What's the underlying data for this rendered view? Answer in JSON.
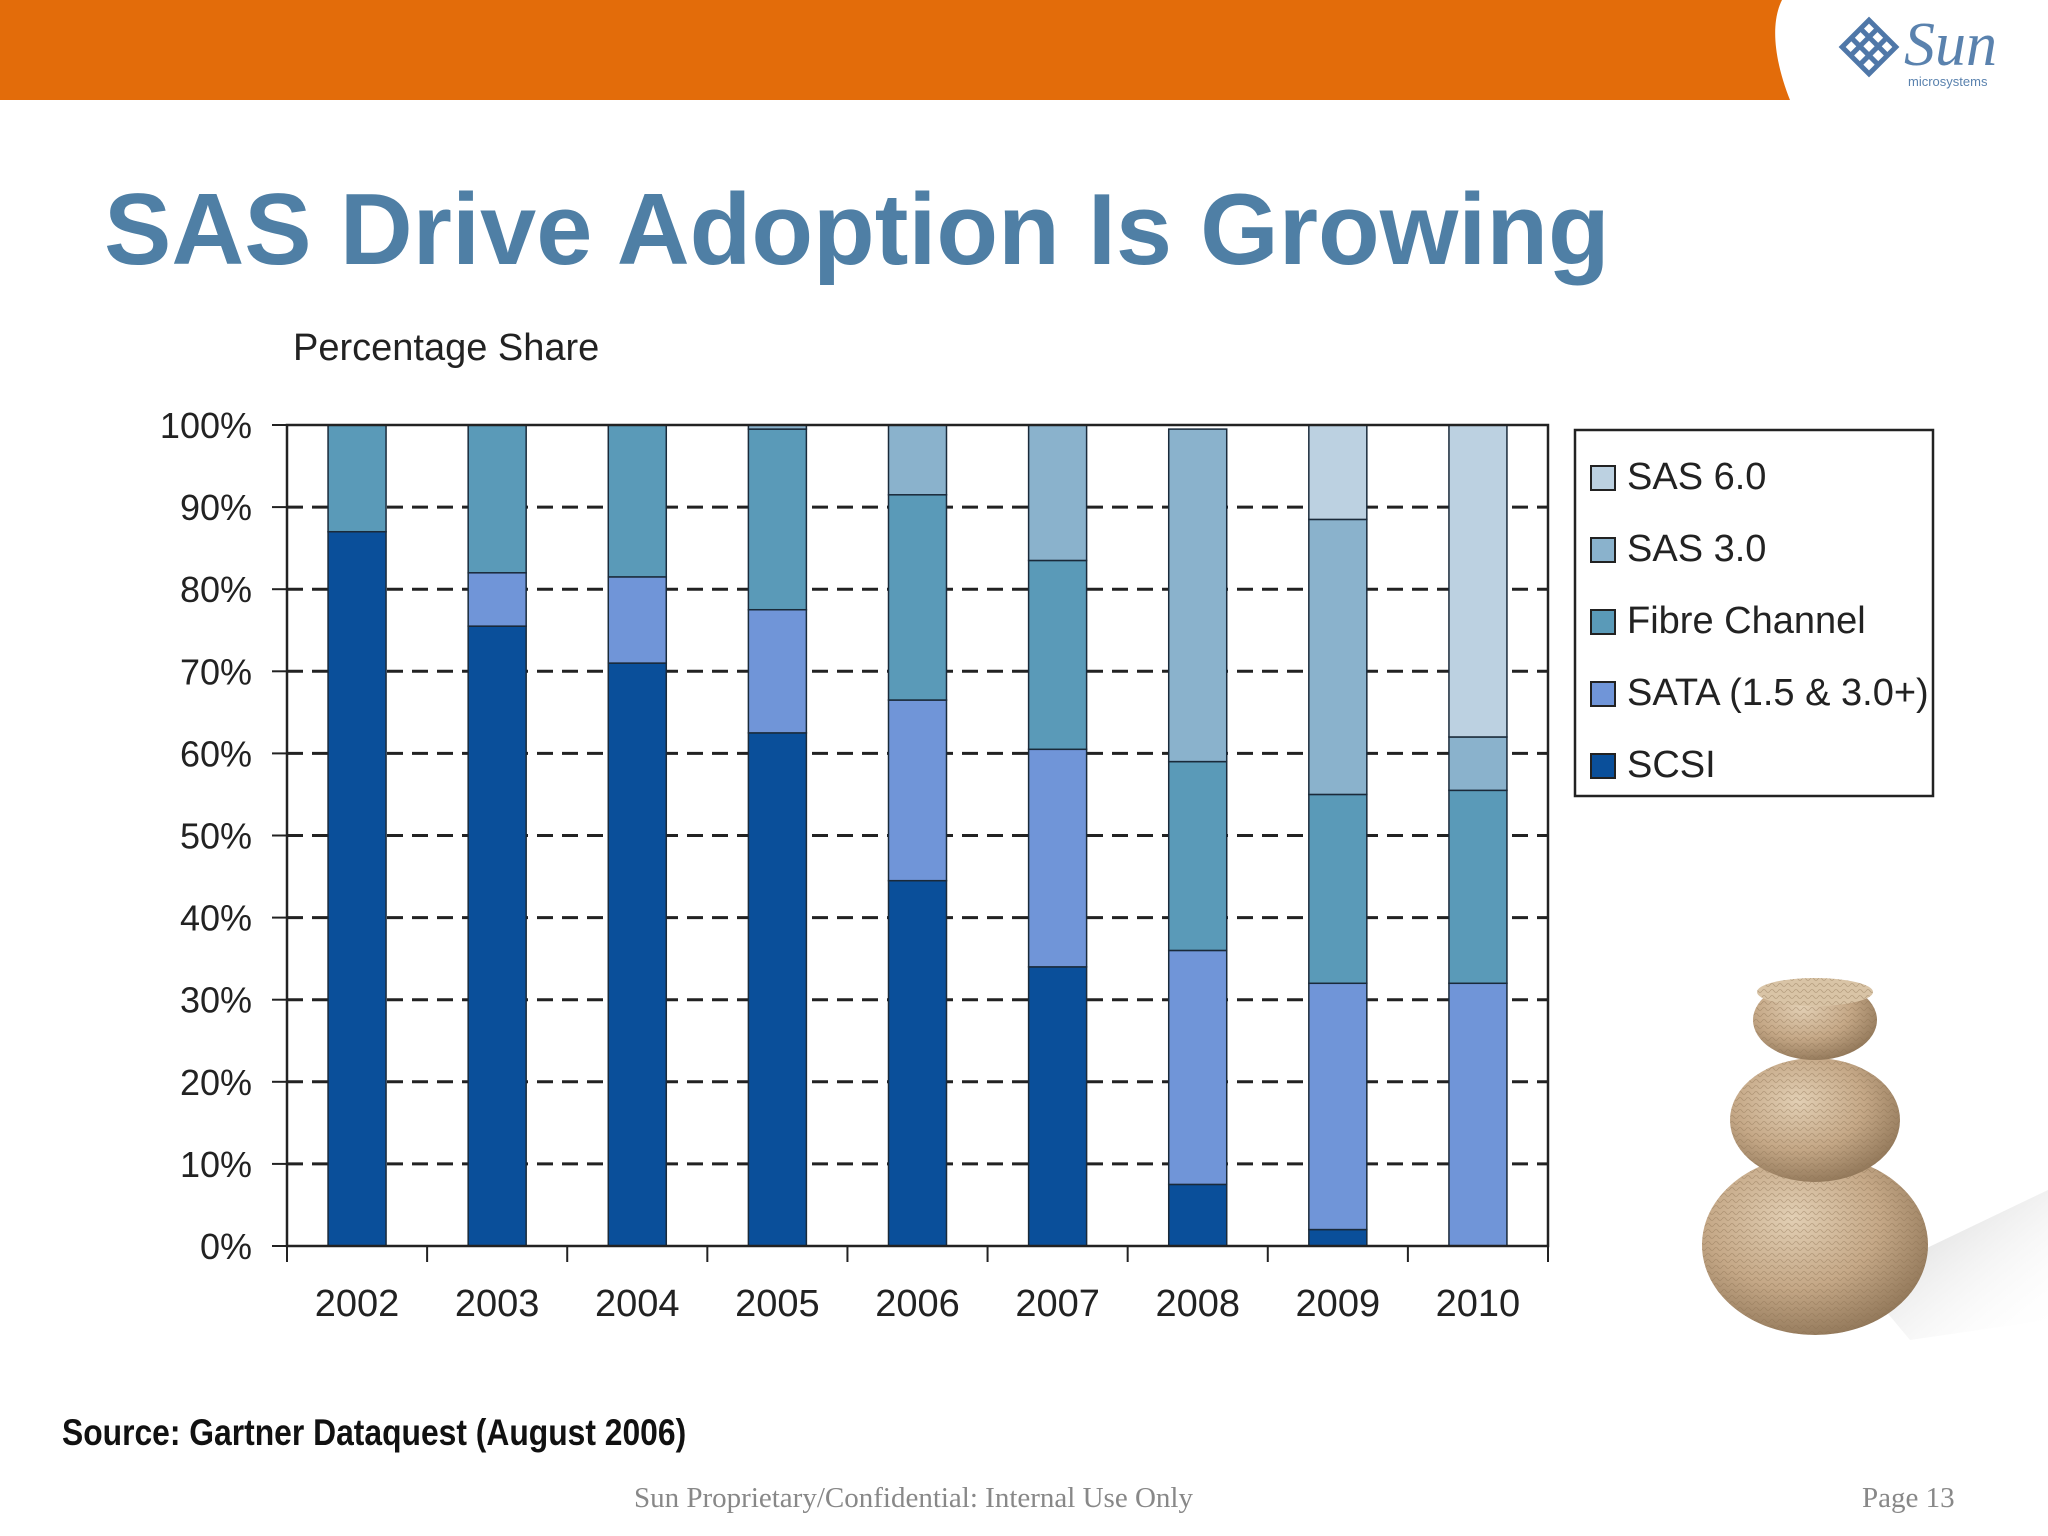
{
  "header": {
    "brand": "Sun",
    "brand_sub": "microsystems",
    "bar_color": "#e36c0a"
  },
  "slide": {
    "title": "SAS Drive Adoption Is Growing",
    "source": "Source: Gartner Dataquest (August 2006)",
    "footer": "Sun Proprietary/Confidential: Internal Use Only",
    "page": "Page 13"
  },
  "chart_data": {
    "type": "bar",
    "stacked": true,
    "title": "Percentage Share",
    "xlabel": "",
    "ylabel": "",
    "ylim": [
      0,
      100
    ],
    "y_ticks": [
      "0%",
      "10%",
      "20%",
      "30%",
      "40%",
      "50%",
      "60%",
      "70%",
      "80%",
      "90%",
      "100%"
    ],
    "grid": "dashed horizontal",
    "legend_position": "right",
    "categories": [
      "2002",
      "2003",
      "2004",
      "2005",
      "2006",
      "2007",
      "2008",
      "2009",
      "2010"
    ],
    "series": [
      {
        "name": "SCSI",
        "color": "#0a4f9a",
        "values": [
          87,
          75.5,
          71,
          62.5,
          44.5,
          34,
          7.5,
          2,
          0
        ]
      },
      {
        "name": "SATA (1.5 & 3.0+)",
        "color": "#7095d8",
        "values": [
          0,
          6.5,
          10.5,
          15,
          22,
          26.5,
          28.5,
          30,
          32
        ]
      },
      {
        "name": "Fibre Channel",
        "color": "#5a9ab8",
        "values": [
          13,
          18,
          18.5,
          22,
          25,
          23,
          23,
          23,
          23.5
        ]
      },
      {
        "name": "SAS 3.0",
        "color": "#8ab2cc",
        "values": [
          0,
          0,
          0,
          0.5,
          8.5,
          16.5,
          40.5,
          33.5,
          6.5
        ]
      },
      {
        "name": "SAS 6.0",
        "color": "#bcd1e1",
        "values": [
          0,
          0,
          0,
          0,
          0,
          0,
          0,
          11.5,
          38
        ]
      }
    ]
  }
}
